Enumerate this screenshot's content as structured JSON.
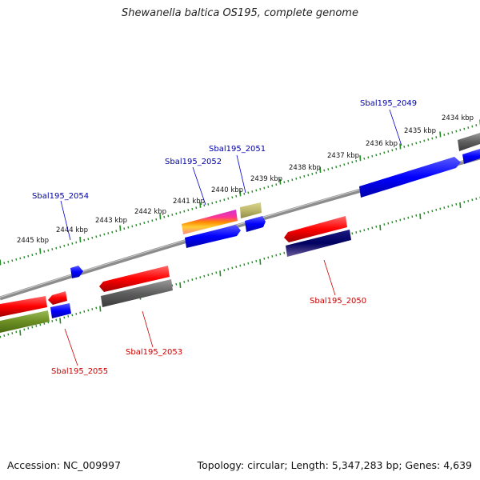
{
  "title": "Shewanella baltica OS195, complete genome",
  "footer": {
    "accession": "Accession: NC_009997",
    "summary": "Topology: circular; Length: 5,347,283 bp; Genes: 4,639"
  },
  "scale_labels": [
    "2445 kbp",
    "2444 kbp",
    "2443 kbp",
    "2442 kbp",
    "2441 kbp",
    "2440 kbp",
    "2439 kbp",
    "2438 kbp",
    "2437 kbp",
    "2436 kbp",
    "2435 kbp",
    "2434 kbp"
  ],
  "gene_labels": {
    "g2049": "Sbal195_2049",
    "g2050": "Sbal195_2050",
    "g2051": "Sbal195_2051",
    "g2052": "Sbal195_2052",
    "g2053": "Sbal195_2053",
    "g2054": "Sbal195_2054",
    "g2055": "Sbal195_2055"
  },
  "colors": {
    "forward_label": "#0000aa",
    "reverse_label": "#cc0000",
    "tick": "#228b22",
    "backbone": "#888888",
    "red": "#ff0000",
    "blue": "#0000ff",
    "gray": "#666666",
    "olive": "#6b8e23",
    "khaki": "#bdb76b",
    "navy": "#000080"
  }
}
